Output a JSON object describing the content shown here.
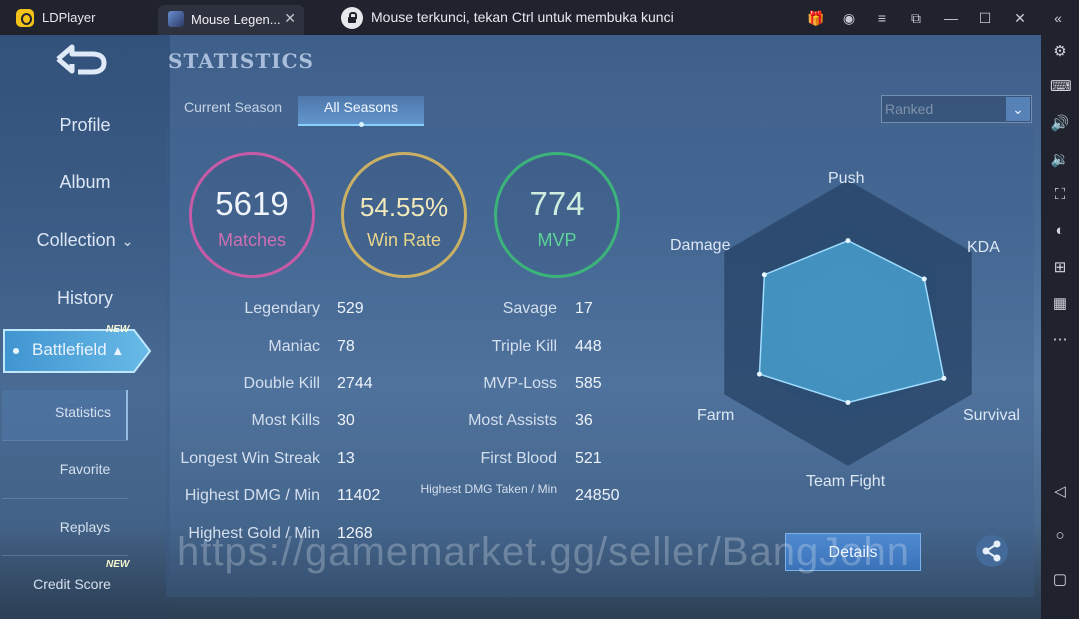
{
  "window": {
    "app_name": "LDPlayer",
    "tab_label": "Mouse Legen...",
    "lock_message": "Mouse terkunci, tekan Ctrl untuk membuka kunci"
  },
  "nav": {
    "profile": "Profile",
    "album": "Album",
    "collection": "Collection",
    "history": "History",
    "battlefield": "Battlefield",
    "battlefield_badge": "NEW",
    "statistics": "Statistics",
    "favorite": "Favorite",
    "replays": "Replays",
    "credit_score": "Credit Score",
    "credit_badge": "NEW"
  },
  "page": {
    "title": "STATISTICS",
    "tabs": [
      "Current Season",
      "All Seasons"
    ],
    "active_tab": "All Seasons",
    "mode_dropdown": "Ranked"
  },
  "summary": {
    "matches": {
      "value": "5619",
      "label": "Matches"
    },
    "win_rate": {
      "value": "54.55%",
      "label": "Win Rate"
    },
    "mvp": {
      "value": "774",
      "label": "MVP"
    }
  },
  "stats_left": [
    {
      "label": "Legendary",
      "value": "529"
    },
    {
      "label": "Maniac",
      "value": "78"
    },
    {
      "label": "Double Kill",
      "value": "2744"
    },
    {
      "label": "Most Kills",
      "value": "30"
    },
    {
      "label": "Longest Win Streak",
      "value": "13"
    },
    {
      "label": "Highest DMG / Min",
      "value": "11402"
    },
    {
      "label": "Highest Gold / Min",
      "value": "1268"
    }
  ],
  "stats_right": [
    {
      "label": "Savage",
      "value": "17"
    },
    {
      "label": "Triple Kill",
      "value": "448"
    },
    {
      "label": "MVP-Loss",
      "value": "585"
    },
    {
      "label": "Most Assists",
      "value": "36"
    },
    {
      "label": "First Blood",
      "value": "521"
    },
    {
      "label": "Highest DMG Taken / Min",
      "value": "24850"
    }
  ],
  "radar": {
    "labels": [
      "Push",
      "KDA",
      "Survival",
      "Team Fight",
      "Farm",
      "Damage"
    ],
    "levels": [
      0.58,
      0.62,
      0.78,
      0.56,
      0.72,
      0.68
    ],
    "fill_color": "#4aa8d8",
    "grid_color": "#2f4d70"
  },
  "buttons": {
    "details": "Details"
  },
  "watermark": "https://gamemarket.gg/seller/BangJohn"
}
